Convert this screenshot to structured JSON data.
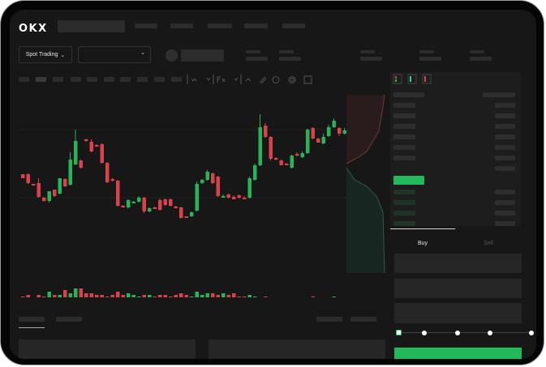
{
  "header": {
    "logo": "OKX"
  },
  "trade_bar": {
    "mode_label": "Spot Trading"
  },
  "order_form": {
    "buy_tab": "Buy",
    "sell_tab": "Sell",
    "leverage_stops": 5,
    "leverage_selected": 0
  },
  "colors": {
    "up": "#26b35a",
    "down": "#d9424a",
    "accent": "#22b85c",
    "bg": "#171717"
  },
  "chart_data": {
    "type": "candlestick",
    "note_fields": [
      "open",
      "close",
      "high",
      "low",
      "volume"
    ],
    "candles": [
      [
        97,
        92,
        97,
        92,
        5
      ],
      [
        97,
        86,
        98,
        85,
        6
      ],
      [
        85,
        83,
        85,
        83,
        3
      ],
      [
        86,
        69,
        92,
        68,
        6
      ],
      [
        68,
        64,
        69,
        63,
        5
      ],
      [
        64,
        76,
        76,
        62,
        8
      ],
      [
        78,
        70,
        78,
        69,
        6
      ],
      [
        73,
        92,
        92,
        72,
        6
      ],
      [
        91,
        82,
        92,
        81,
        9
      ],
      [
        84,
        115,
        124,
        83,
        7
      ],
      [
        109,
        138,
        152,
        108,
        10
      ],
      [
        114,
        105,
        115,
        104,
        10
      ],
      [
        140,
        138,
        141,
        137,
        7
      ],
      [
        137,
        125,
        140,
        124,
        7
      ],
      [
        133,
        131,
        134,
        131,
        6
      ],
      [
        134,
        111,
        135,
        110,
        6
      ],
      [
        111,
        87,
        112,
        86,
        5
      ],
      [
        91,
        89,
        92,
        88,
        6
      ],
      [
        89,
        58,
        90,
        57,
        8
      ],
      [
        58,
        56,
        59,
        56,
        6
      ],
      [
        56,
        65,
        66,
        55,
        7
      ],
      [
        63,
        63,
        64,
        62,
        6
      ],
      [
        63,
        68,
        70,
        62,
        5
      ],
      [
        68,
        51,
        69,
        49,
        6
      ],
      [
        51,
        55,
        56,
        50,
        6
      ],
      [
        56,
        54,
        57,
        54,
        5
      ],
      [
        65,
        53,
        67,
        52,
        6
      ],
      [
        66,
        59,
        67,
        58,
        6
      ],
      [
        66,
        58,
        67,
        57,
        5
      ],
      [
        57,
        56,
        58,
        56,
        6
      ],
      [
        56,
        43,
        57,
        42,
        7
      ],
      [
        45,
        43,
        45,
        43,
        6
      ],
      [
        45,
        50,
        51,
        44,
        5
      ],
      [
        52,
        85,
        88,
        51,
        8
      ],
      [
        86,
        90,
        91,
        85,
        6
      ],
      [
        90,
        100,
        102,
        89,
        7
      ],
      [
        98,
        86,
        99,
        85,
        7
      ],
      [
        94,
        70,
        95,
        69,
        6
      ],
      [
        70,
        70,
        72,
        68,
        7
      ],
      [
        72,
        68,
        73,
        67,
        6
      ],
      [
        69,
        66,
        71,
        66,
        7
      ],
      [
        71,
        68,
        72,
        67,
        5
      ],
      [
        68,
        66,
        70,
        66,
        5
      ],
      [
        68,
        92,
        94,
        67,
        6
      ],
      [
        90,
        108,
        110,
        89,
        5
      ],
      [
        108,
        155,
        171,
        107,
        4
      ],
      [
        157,
        143,
        160,
        142,
        5
      ],
      [
        143,
        116,
        144,
        114,
        3
      ],
      [
        117,
        115,
        118,
        114,
        2
      ],
      [
        114,
        108,
        115,
        108,
        2
      ],
      [
        110,
        109,
        111,
        108,
        3
      ],
      [
        105,
        120,
        121,
        104,
        4
      ],
      [
        122,
        120,
        124,
        119,
        3
      ],
      [
        118,
        123,
        125,
        117,
        3
      ],
      [
        123,
        152,
        153,
        122,
        4
      ],
      [
        154,
        141,
        155,
        140,
        5
      ],
      [
        141,
        136,
        142,
        136,
        4
      ],
      [
        135,
        143,
        147,
        134,
        4
      ],
      [
        144,
        155,
        158,
        143,
        4
      ],
      [
        155,
        163,
        166,
        154,
        5
      ],
      [
        154,
        147,
        155,
        144,
        4
      ],
      [
        147,
        151,
        154,
        146,
        3
      ]
    ]
  }
}
